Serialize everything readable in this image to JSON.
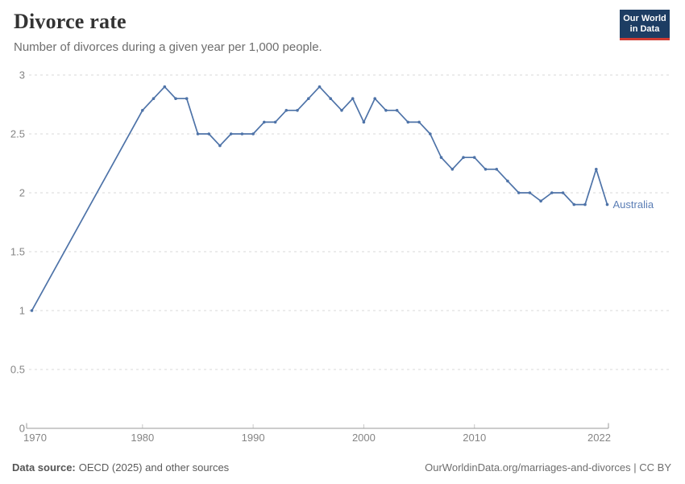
{
  "header": {
    "title": "Divorce rate",
    "subtitle": "Number of divorces during a given year per 1,000 people.",
    "logo": {
      "line1": "Our World",
      "line2": "in Data",
      "bg_color": "#1d3d63",
      "bar_color": "#cf3b32"
    }
  },
  "chart_data": {
    "type": "line",
    "title": "Divorce rate",
    "subtitle": "Number of divorces during a given year per 1,000 people.",
    "xlabel": "",
    "ylabel": "",
    "xlim": [
      1970,
      2022
    ],
    "ylim": [
      0,
      3
    ],
    "x_ticks": [
      1970,
      1980,
      1990,
      2000,
      2010,
      2022
    ],
    "y_ticks": [
      0,
      0.5,
      1,
      1.5,
      2,
      2.5,
      3
    ],
    "grid": "horizontal-dashed",
    "legend_position": "end-of-line-label",
    "colors": {
      "grid": "#d8d8d8",
      "axis": "#9a9a9a",
      "tick": "#c8c8c8",
      "tick_label": "#858585"
    },
    "series": [
      {
        "name": "Australia",
        "color": "#4e73a8",
        "points": [
          [
            1970,
            1.0
          ],
          [
            1980,
            2.7
          ],
          [
            1981,
            2.8
          ],
          [
            1982,
            2.9
          ],
          [
            1983,
            2.8
          ],
          [
            1984,
            2.8
          ],
          [
            1985,
            2.5
          ],
          [
            1986,
            2.5
          ],
          [
            1987,
            2.4
          ],
          [
            1988,
            2.5
          ],
          [
            1989,
            2.5
          ],
          [
            1990,
            2.5
          ],
          [
            1991,
            2.6
          ],
          [
            1992,
            2.6
          ],
          [
            1993,
            2.7
          ],
          [
            1994,
            2.7
          ],
          [
            1995,
            2.8
          ],
          [
            1996,
            2.9
          ],
          [
            1997,
            2.8
          ],
          [
            1998,
            2.7
          ],
          [
            1999,
            2.8
          ],
          [
            2000,
            2.6
          ],
          [
            2001,
            2.8
          ],
          [
            2002,
            2.7
          ],
          [
            2003,
            2.7
          ],
          [
            2004,
            2.6
          ],
          [
            2005,
            2.6
          ],
          [
            2006,
            2.5
          ],
          [
            2007,
            2.3
          ],
          [
            2008,
            2.2
          ],
          [
            2009,
            2.3
          ],
          [
            2010,
            2.3
          ],
          [
            2011,
            2.2
          ],
          [
            2012,
            2.2
          ],
          [
            2013,
            2.1
          ],
          [
            2014,
            2.0
          ],
          [
            2015,
            2.0
          ],
          [
            2016,
            1.93
          ],
          [
            2017,
            2.0
          ],
          [
            2018,
            2.0
          ],
          [
            2019,
            1.9
          ],
          [
            2020,
            1.9
          ],
          [
            2021,
            2.2
          ],
          [
            2022,
            1.9
          ]
        ]
      }
    ]
  },
  "footer": {
    "source_label": "Data source:",
    "source_text": "OECD (2025) and other sources",
    "link_text": "OurWorldinData.org/marriages-and-divorces | CC BY"
  }
}
